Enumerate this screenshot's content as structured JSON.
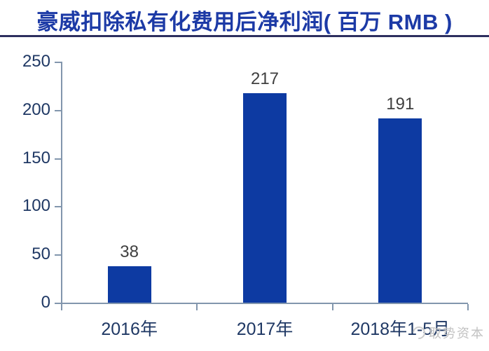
{
  "header": {
    "title": "豪威扣除私有化费用后净利润( 百万 RMB )"
  },
  "chart_data": {
    "type": "bar",
    "title": "豪威扣除私有化费用后净利润( 百万 RMB )",
    "categories": [
      "2016年",
      "2017年",
      "2018年1-5月"
    ],
    "values": [
      38,
      217,
      191
    ],
    "value_labels": [
      "38",
      "217",
      "191"
    ],
    "ylim": [
      0,
      250
    ],
    "yticks": [
      0,
      50,
      100,
      150,
      200,
      250
    ],
    "xlabel": "",
    "ylabel": "",
    "grid": false,
    "legend": "none",
    "bar_color": "#0d3aa2",
    "axis_color": "#8296ad",
    "tick_label_color": "#1f3864",
    "value_label_color": "#3f3f3f",
    "title_color": "#1c3aa6",
    "divider_color": "#2d2f5e"
  },
  "watermark": {
    "text": "取势资本"
  }
}
